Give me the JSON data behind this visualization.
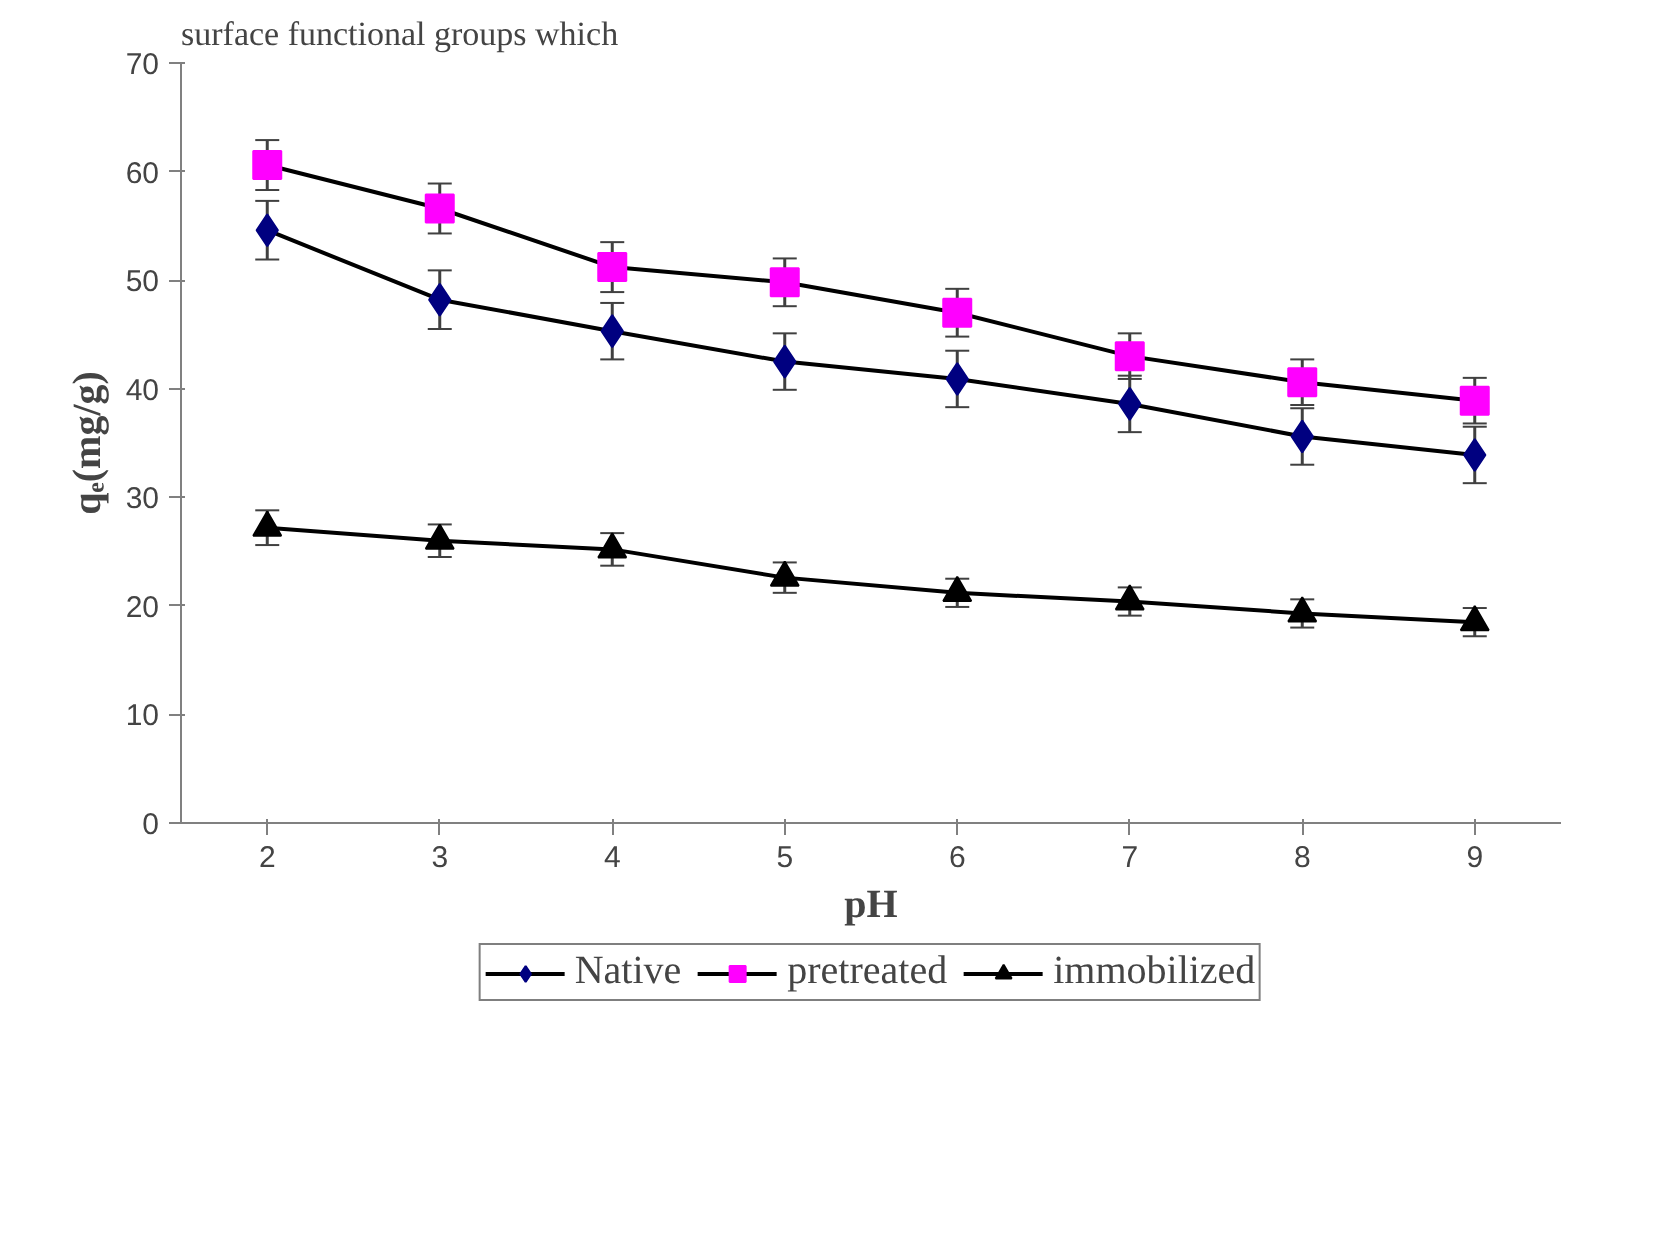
{
  "chart_data": {
    "type": "line",
    "xlabel": "pH",
    "ylabel": "qₑ(mg/g)",
    "annotations": [
      "surface functional groups which"
    ],
    "categories": [
      "2",
      "3",
      "4",
      "5",
      "6",
      "7",
      "8",
      "9"
    ],
    "ylim": [
      0,
      70
    ],
    "yticks": [
      0,
      10,
      20,
      30,
      40,
      50,
      60,
      70
    ],
    "grid": false,
    "legend": "bottom",
    "line_style": "solid",
    "series": [
      {
        "name": "Native",
        "color": "#000080",
        "marker": "diamond",
        "values": [
          54.6,
          48.2,
          45.3,
          42.5,
          40.9,
          38.6,
          35.6,
          33.9
        ],
        "errors": [
          2.7,
          2.7,
          2.6,
          2.6,
          2.6,
          2.6,
          2.6,
          2.6
        ]
      },
      {
        "name": "pretreated",
        "color": "#ff00ff",
        "marker": "square",
        "values": [
          60.6,
          56.6,
          51.2,
          49.8,
          47.0,
          43.0,
          40.6,
          38.9
        ],
        "errors": [
          2.3,
          2.3,
          2.3,
          2.2,
          2.2,
          2.1,
          2.1,
          2.1
        ]
      },
      {
        "name": "immobilized",
        "color": "#000000",
        "marker": "triangle",
        "values": [
          27.2,
          26.0,
          25.2,
          22.6,
          21.2,
          20.4,
          19.3,
          18.5
        ],
        "errors": [
          1.6,
          1.5,
          1.5,
          1.4,
          1.3,
          1.3,
          1.3,
          1.3
        ]
      }
    ]
  }
}
